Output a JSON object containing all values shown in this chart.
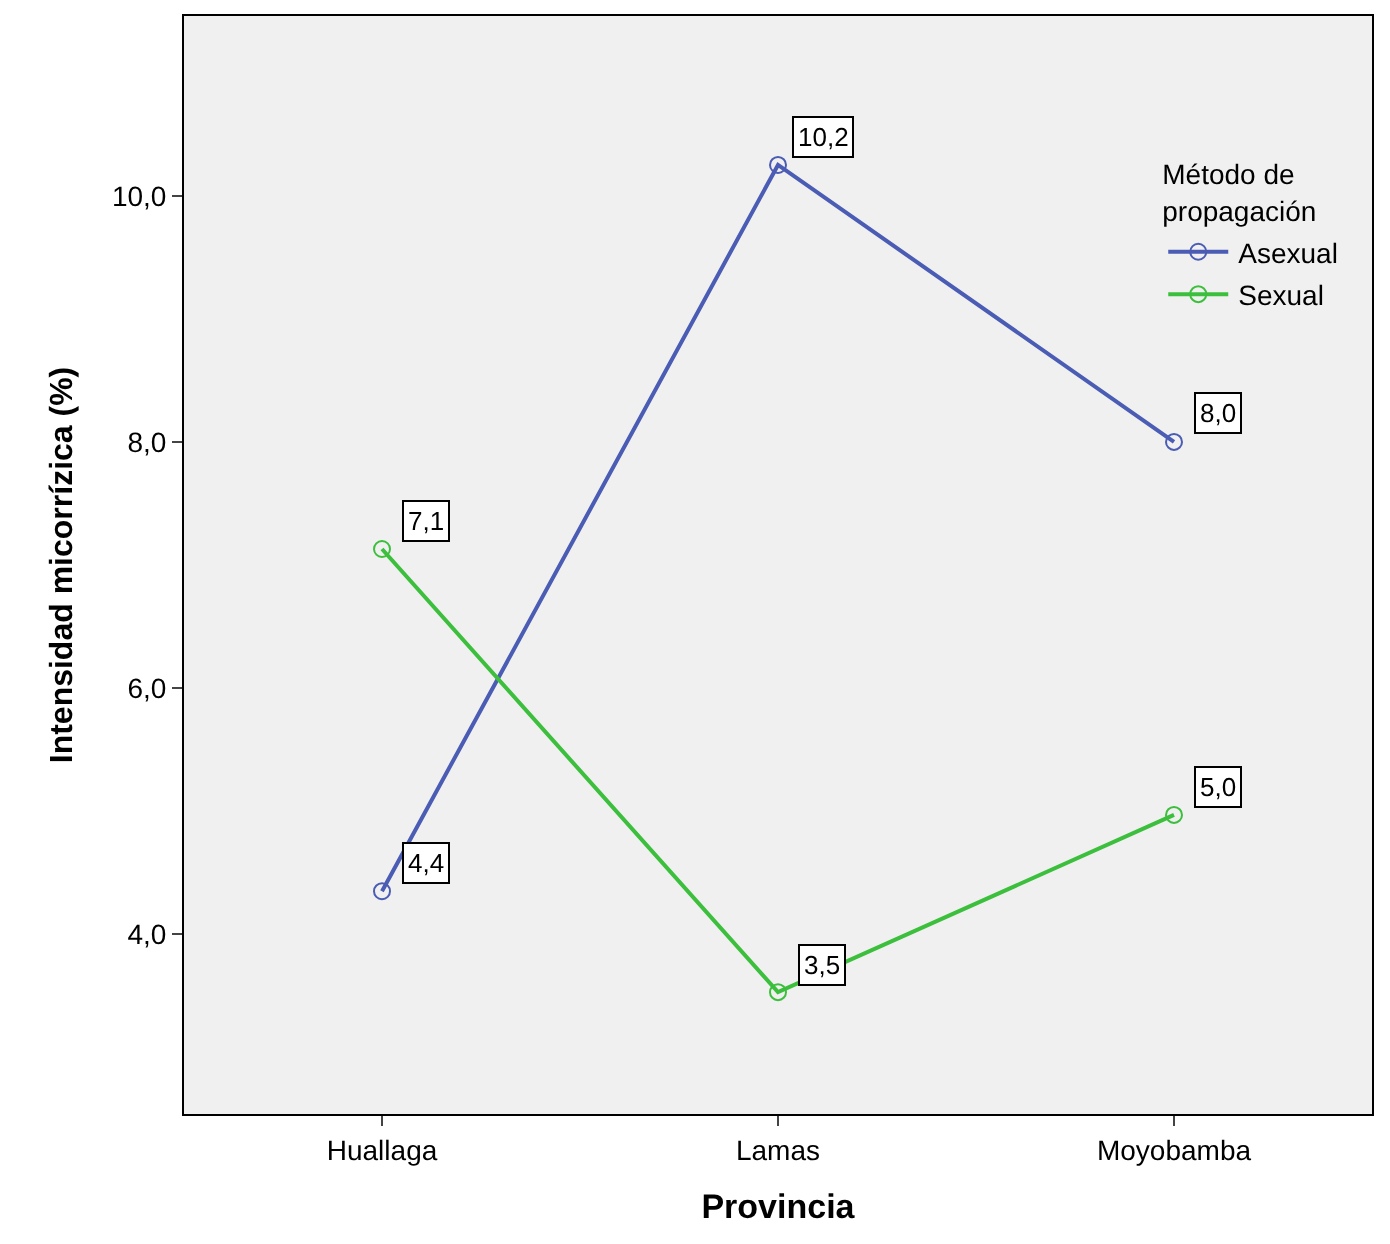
{
  "chart_data": {
    "type": "line",
    "xlabel": "Provincia",
    "ylabel": "Intensidad micorrízica (%)",
    "legend_title": "Método de\npropagación",
    "categories": [
      "Huallaga",
      "Lamas",
      "Moyobamba"
    ],
    "series": [
      {
        "name": "Asexual",
        "color": "#4a5cb3",
        "values": [
          4.35,
          10.25,
          8.0
        ],
        "value_labels": [
          "4,4",
          "10,2",
          "8,0"
        ]
      },
      {
        "name": "Sexual",
        "color": "#3cbf3c",
        "values": [
          7.13,
          3.53,
          4.97
        ],
        "value_labels": [
          "7,1",
          "3,5",
          "5,0"
        ]
      }
    ],
    "ylim": [
      2.54,
      11.46
    ],
    "yticks": [
      {
        "value": 4,
        "label": "4,0"
      },
      {
        "value": 6,
        "label": "6,0"
      },
      {
        "value": 8,
        "label": "8,0"
      },
      {
        "value": 10,
        "label": "10,0"
      }
    ],
    "grid": false,
    "legend": "top right",
    "marker": "circle",
    "line_style": "solid"
  }
}
